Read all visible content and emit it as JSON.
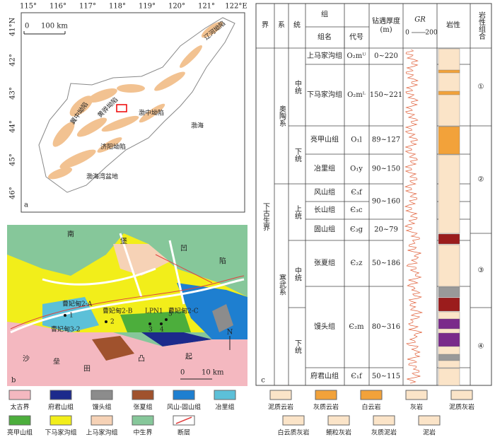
{
  "panel_a": {
    "label": "a",
    "lon_ticks": [
      "115°",
      "116°",
      "117°",
      "118°",
      "119°",
      "120°",
      "121°",
      "122°E"
    ],
    "lat_ticks": [
      "41°N",
      "42°",
      "43°",
      "44°",
      "45°",
      "46°"
    ],
    "scale": [
      "0",
      "100 km"
    ],
    "places": [
      "辽河坳陷",
      "冀中坳陷",
      "黄骅坳陷",
      "渤中坳陷",
      "渤海",
      "济阳坳陷",
      "渤海湾盆地"
    ]
  },
  "panel_b": {
    "label": "b",
    "places": [
      "南",
      "堡",
      "凹",
      "陷",
      "沙",
      "垒",
      "田",
      "凸",
      "起"
    ],
    "wells": [
      "曹妃甸2-A",
      "曹妃甸2-B",
      "LPN1",
      "曹妃甸2-C",
      "曹妃甸3-2"
    ],
    "well_numbers": [
      "1",
      "2",
      "3",
      "4",
      "5"
    ],
    "north": "N",
    "scale": [
      "0",
      "10 km"
    ]
  },
  "map_legend": [
    {
      "label": "太古界",
      "color": "#f4b8c0"
    },
    {
      "label": "府君山组",
      "color": "#1c2a8c"
    },
    {
      "label": "馒头组",
      "color": "#8c8c8c"
    },
    {
      "label": "张夏组",
      "color": "#a0522d"
    },
    {
      "label": "风山-固山组",
      "color": "#1e7fd0"
    },
    {
      "label": "冶里组",
      "color": "#5cc0d8"
    },
    {
      "label": "亮甲山组",
      "color": "#4cae3c"
    },
    {
      "label": "下马家沟组",
      "color": "#f2ee1a"
    },
    {
      "label": "上马家沟组",
      "color": "#f6d2b6"
    },
    {
      "label": "中生界",
      "color": "#86c79a"
    },
    {
      "label": "断层",
      "color": "#e04040"
    }
  ],
  "column": {
    "label": "c",
    "headers": {
      "era": "界",
      "system": "系",
      "series": "统",
      "group": "组",
      "name": "组名",
      "code": "代号",
      "thickness": "钻遇厚度\n(m)",
      "gr": "GR",
      "gr_min": "0",
      "gr_max": "200",
      "lithology": "岩性",
      "combination": "岩性组合"
    },
    "era": "下古生界",
    "systems": [
      "奥陶系",
      "寒武系"
    ],
    "series": [
      "中统",
      "下统",
      "上统",
      "中统",
      "下统"
    ],
    "formations": [
      {
        "name": "上马家沟组",
        "code": "O₂mᵁ",
        "thickness": "0~220"
      },
      {
        "name": "下马家沟组",
        "code": "O₂mᴸ",
        "thickness": "150~221"
      },
      {
        "name": "亮甲山组",
        "code": "O₁l",
        "thickness": "89~127"
      },
      {
        "name": "冶里组",
        "code": "O₁y",
        "thickness": "90~150"
      },
      {
        "name": "风山组",
        "code": "Є₃f",
        "thickness": "90~160"
      },
      {
        "name": "长山组",
        "code": "Є₃c"
      },
      {
        "name": "固山组",
        "code": "Є₃g",
        "thickness": "20~79"
      },
      {
        "name": "张夏组",
        "code": "Є₂z",
        "thickness": "50~186"
      },
      {
        "name": "馒头组",
        "code": "Є₂m",
        "thickness": "80~316"
      },
      {
        "name": "府君山组",
        "code": "Є₁f",
        "thickness": "50~115"
      }
    ],
    "combinations": [
      "①",
      "②",
      "③",
      "④"
    ]
  },
  "lith_legend": [
    "泥质云岩",
    "灰质云岩",
    "白云岩",
    "灰岩",
    "泥质灰岩",
    "白云质灰岩",
    "鲕粒灰岩",
    "灰质泥岩",
    "泥岩"
  ]
}
